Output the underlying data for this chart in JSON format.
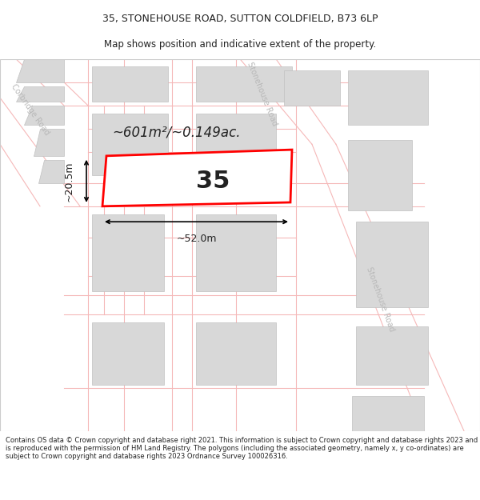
{
  "title_line1": "35, STONEHOUSE ROAD, SUTTON COLDFIELD, B73 6LP",
  "title_line2": "Map shows position and indicative extent of the property.",
  "footer_text": "Contains OS data © Crown copyright and database right 2021. This information is subject to Crown copyright and database rights 2023 and is reproduced with the permission of HM Land Registry. The polygons (including the associated geometry, namely x, y co-ordinates) are subject to Crown copyright and database rights 2023 Ordnance Survey 100026316.",
  "map_bg": "#efefef",
  "street_color": "#ffffff",
  "road_line_color": "#f5b8b8",
  "building_color": "#d8d8d8",
  "building_outline": "#c0c0c0",
  "highlight_color": "#ff0000",
  "text_color": "#222222",
  "road_label_color": "#b8b8b8",
  "area_text": "~601m²/~0.149ac.",
  "number_text": "35",
  "width_text": "~52.0m",
  "height_text": "~20.5m",
  "road_label_sh1": "Stonehouse Road",
  "road_label_sh2": "Stonehouse Road",
  "road_label_corb": "Corbridge Road",
  "title_fontsize": 9,
  "subtitle_fontsize": 8.5,
  "footer_fontsize": 6.0
}
